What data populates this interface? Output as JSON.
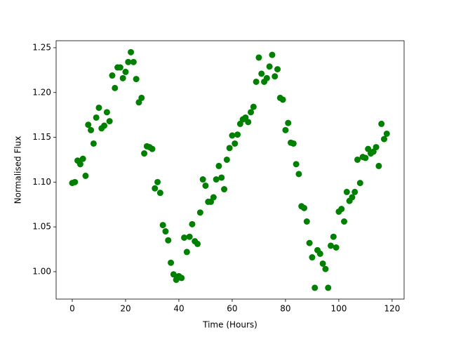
{
  "chart_data": {
    "type": "scatter",
    "xlabel": "Time (Hours)",
    "ylabel": "Normalised Flux",
    "xlim": [
      -6.05,
      124.5
    ],
    "ylim": [
      0.9694,
      1.2578
    ],
    "xticks": [
      0,
      20,
      40,
      60,
      80,
      100,
      120
    ],
    "yticks": [
      {
        "value": 1.0,
        "label": "1.00"
      },
      1.05,
      {
        "value": 1.1,
        "label": "1.10"
      },
      1.15,
      {
        "value": 1.2,
        "label": "1.20"
      },
      1.25
    ],
    "series": [
      {
        "color": "#008000",
        "x": [
          0,
          1,
          2,
          3,
          4,
          5,
          6,
          7,
          8,
          9,
          10,
          11,
          12,
          13,
          14,
          15,
          16,
          17,
          18,
          19,
          20,
          21,
          22,
          23,
          24,
          25,
          26,
          27,
          28,
          29,
          30,
          31,
          32,
          33,
          34,
          35,
          36,
          37,
          38,
          39,
          40,
          41,
          42,
          43,
          44,
          45,
          46,
          47,
          48,
          49,
          50,
          51,
          52,
          53,
          54,
          55,
          56,
          57,
          58,
          59,
          60,
          61,
          62,
          63,
          64,
          65,
          66,
          67,
          68,
          69,
          70,
          71,
          72,
          73,
          74,
          75,
          76,
          77,
          78,
          79,
          80,
          81,
          82,
          83,
          84,
          85,
          86,
          87,
          88,
          89,
          90,
          91,
          92,
          93,
          94,
          95,
          96,
          97,
          98,
          99,
          100,
          101,
          102,
          103,
          104,
          105,
          106,
          107,
          108,
          109,
          110,
          111,
          112,
          113,
          114,
          115,
          116,
          117,
          118
        ],
        "values": [
          1.099,
          1.1,
          1.124,
          1.12,
          1.126,
          1.107,
          1.164,
          1.158,
          1.143,
          1.172,
          1.183,
          1.16,
          1.163,
          1.178,
          1.168,
          1.219,
          1.205,
          1.228,
          1.228,
          1.216,
          1.223,
          1.234,
          1.245,
          1.234,
          1.215,
          1.189,
          1.194,
          1.132,
          1.14,
          1.139,
          1.137,
          1.093,
          1.1,
          1.088,
          1.052,
          1.045,
          1.035,
          1.01,
          0.997,
          0.991,
          0.995,
          0.993,
          1.038,
          1.022,
          1.039,
          1.053,
          1.034,
          1.031,
          1.066,
          1.103,
          1.096,
          1.078,
          1.078,
          1.083,
          1.103,
          1.118,
          1.105,
          1.092,
          1.125,
          1.138,
          1.152,
          1.143,
          1.153,
          1.165,
          1.17,
          1.172,
          1.167,
          1.178,
          1.184,
          1.212,
          1.239,
          1.221,
          1.212,
          1.216,
          1.229,
          1.242,
          1.218,
          1.226,
          1.194,
          1.192,
          1.158,
          1.166,
          1.144,
          1.143,
          1.12,
          1.109,
          1.073,
          1.071,
          1.056,
          1.032,
          1.016,
          0.982,
          1.024,
          1.02,
          1.009,
          1.003,
          0.982,
          1.029,
          1.039,
          1.027,
          1.067,
          1.07,
          1.056,
          1.089,
          1.079,
          1.083,
          1.089,
          1.125,
          1.099,
          1.128,
          1.127,
          1.137,
          1.132,
          1.134,
          1.139,
          1.118,
          1.165,
          1.148,
          1.154
        ]
      }
    ]
  }
}
